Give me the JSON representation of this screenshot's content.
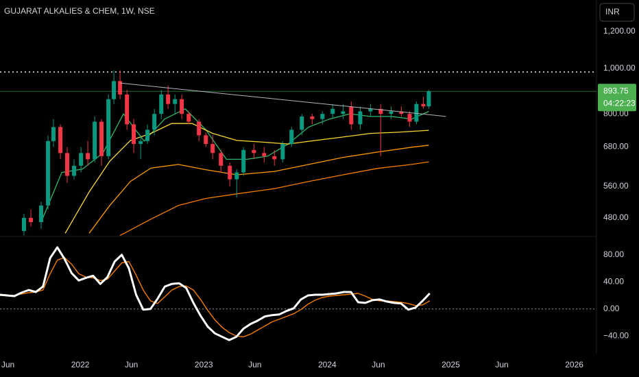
{
  "chart_data": [
    {
      "type": "candlestick",
      "title": "GUJARAT ALKALIES & CHEM, 1W, NSE",
      "currency": "INR",
      "x": [
        2021.544,
        2021.6,
        2021.683,
        2021.739,
        2021.783,
        2021.839,
        2021.894,
        2021.95,
        2022.006,
        2022.061,
        2022.117,
        2022.172,
        2022.228,
        2022.272,
        2022.322,
        2022.378,
        2022.433,
        2022.489,
        2022.544,
        2022.6,
        2022.656,
        2022.711,
        2022.767,
        2022.822,
        2022.878,
        2022.961,
        2023.017,
        2023.072,
        2023.139,
        2023.211,
        2023.267,
        2023.322,
        2023.406,
        2023.489,
        2023.572,
        2023.639,
        2023.711,
        2023.794,
        2023.878,
        2023.961,
        2024.044,
        2024.128,
        2024.194,
        2024.267,
        2024.35,
        2024.433,
        2024.517,
        2024.6,
        2024.667,
        2024.722,
        2024.778,
        2024.822
      ],
      "open": [
        450,
        480,
        470,
        510,
        700,
        750,
        660,
        590,
        620,
        660,
        640,
        770,
        650,
        860,
        940,
        880,
        760,
        690,
        700,
        740,
        800,
        880,
        840,
        860,
        800,
        770,
        720,
        690,
        660,
        620,
        580,
        600,
        670,
        660,
        650,
        640,
        690,
        740,
        790,
        780,
        800,
        800,
        830,
        760,
        810,
        820,
        800,
        810,
        800,
        770,
        840,
        830
      ],
      "high": [
        490,
        500,
        520,
        720,
        780,
        760,
        680,
        640,
        680,
        700,
        790,
        780,
        880,
        990,
        990,
        900,
        780,
        720,
        760,
        820,
        900,
        920,
        880,
        880,
        810,
        780,
        730,
        720,
        670,
        630,
        610,
        680,
        690,
        680,
        670,
        700,
        750,
        800,
        800,
        810,
        840,
        840,
        850,
        830,
        840,
        840,
        830,
        830,
        810,
        850,
        870,
        900
      ],
      "low": [
        440,
        460,
        455,
        500,
        680,
        640,
        570,
        580,
        600,
        620,
        630,
        620,
        640,
        840,
        860,
        740,
        660,
        640,
        690,
        720,
        780,
        820,
        800,
        780,
        760,
        700,
        680,
        640,
        600,
        560,
        530,
        590,
        640,
        630,
        620,
        630,
        680,
        720,
        760,
        760,
        780,
        780,
        740,
        740,
        790,
        650,
        780,
        790,
        750,
        760,
        820,
        820
      ],
      "close": [
        480,
        470,
        510,
        700,
        750,
        660,
        590,
        620,
        660,
        640,
        770,
        650,
        860,
        940,
        880,
        760,
        690,
        700,
        740,
        800,
        880,
        840,
        860,
        800,
        770,
        720,
        690,
        660,
        620,
        580,
        600,
        670,
        660,
        650,
        640,
        690,
        740,
        790,
        780,
        800,
        820,
        810,
        760,
        810,
        820,
        800,
        810,
        800,
        770,
        840,
        830,
        893.75
      ],
      "up_color": "#089981",
      "down_color": "#f23645",
      "series": [
        {
          "color": "#2fb86a",
          "x": [
            2021.683,
            2021.85,
            2022.017,
            2022.183,
            2022.35,
            2022.517,
            2022.683,
            2022.85,
            2023.017,
            2023.183,
            2023.35,
            2023.517,
            2023.683,
            2023.85,
            2024.017,
            2024.183,
            2024.35,
            2024.517,
            2024.683,
            2024.822
          ],
          "values": [
            470,
            600,
            610,
            660,
            800,
            700,
            780,
            820,
            740,
            640,
            640,
            650,
            690,
            750,
            780,
            800,
            790,
            790,
            780,
            810
          ]
        },
        {
          "color": "#fdd835",
          "x": [
            2021.878,
            2022.072,
            2022.239,
            2022.406,
            2022.572,
            2022.739,
            2022.906,
            2023.072,
            2023.267,
            2023.461,
            2023.683,
            2023.906,
            2024.128,
            2024.35,
            2024.572,
            2024.822
          ],
          "values": [
            445,
            545,
            634,
            702,
            727,
            763,
            763,
            727,
            702,
            697,
            690,
            702,
            714,
            727,
            731,
            738
          ]
        },
        {
          "color": "#ff9800",
          "x": [
            2022.072,
            2022.239,
            2022.406,
            2022.572,
            2022.794,
            2023.017,
            2023.267,
            2023.572,
            2023.85,
            2024.128,
            2024.406,
            2024.683,
            2024.822
          ],
          "values": [
            445,
            510,
            574,
            613,
            624,
            608,
            593,
            603,
            624,
            646,
            663,
            679,
            686
          ]
        },
        {
          "color": "#f57c00",
          "x": [
            2022.322,
            2022.572,
            2022.794,
            2023.017,
            2023.267,
            2023.572,
            2023.85,
            2024.128,
            2024.406,
            2024.683,
            2024.822
          ],
          "values": [
            440,
            477,
            510,
            528,
            540,
            554,
            574,
            593,
            612,
            624,
            632
          ]
        }
      ],
      "trendline": {
        "x": [
          2022.322,
          2024.961
        ],
        "values": [
          931,
          790
        ],
        "color": "#b2b5be"
      },
      "level": 983,
      "last_price": 893.75,
      "countdown": "04:22:23",
      "last_color": "#4caf50",
      "log_scale": true,
      "xlim": [
        2021.35,
        2026.18
      ],
      "ylim": [
        438,
        1400
      ],
      "yticks": [
        {
          "value": 1200,
          "label": "1,200.00"
        },
        {
          "value": 1000,
          "label": "1,000.00"
        },
        {
          "value": 800,
          "label": "800.00"
        },
        {
          "value": 680,
          "label": "680.00"
        },
        {
          "value": 560,
          "label": "560.00"
        },
        {
          "value": 480,
          "label": "480.00"
        }
      ]
    },
    {
      "type": "line",
      "x": [
        2021.35,
        2021.408,
        2021.466,
        2021.524,
        2021.582,
        2021.64,
        2021.698,
        2021.756,
        2021.814,
        2021.872,
        2021.93,
        2021.988,
        2022.046,
        2022.104,
        2022.162,
        2022.22,
        2022.278,
        2022.336,
        2022.394,
        2022.452,
        2022.51,
        2022.568,
        2022.626,
        2022.684,
        2022.742,
        2022.8,
        2022.858,
        2022.916,
        2022.974,
        2023.032,
        2023.09,
        2023.148,
        2023.206,
        2023.264,
        2023.322,
        2023.38,
        2023.438,
        2023.496,
        2023.554,
        2023.612,
        2023.67,
        2023.728,
        2023.786,
        2023.844,
        2023.902,
        2023.96,
        2024.018,
        2024.076,
        2024.134,
        2024.192,
        2024.25,
        2024.308,
        2024.366,
        2024.424,
        2024.482,
        2024.54,
        2024.598,
        2024.656,
        2024.714,
        2024.772,
        2024.83
      ],
      "series": [
        {
          "color": "#ffffff",
          "values": [
            21,
            20,
            19,
            24,
            28,
            25,
            33,
            75,
            91,
            74,
            53,
            42,
            46,
            49,
            37,
            47,
            70,
            80,
            60,
            21,
            -1,
            0,
            15,
            33,
            37,
            38,
            31,
            9,
            -10,
            -26,
            -36,
            -41,
            -46,
            -41,
            -29,
            -22,
            -17,
            -11,
            -9,
            -8,
            -3,
            1,
            14,
            20,
            21,
            21,
            22,
            23,
            25,
            25,
            10,
            9,
            13,
            14,
            11,
            9,
            8,
            -1,
            2,
            12,
            23
          ]
        },
        {
          "color": "#f57c00",
          "values": [
            20,
            20,
            20,
            22,
            24,
            25,
            28,
            52,
            72,
            76,
            66,
            52,
            47,
            46,
            42,
            44,
            56,
            68,
            70,
            50,
            28,
            12,
            8,
            18,
            28,
            33,
            34,
            28,
            14,
            -2,
            -16,
            -27,
            -35,
            -40,
            -41,
            -37,
            -31,
            -25,
            -19,
            -15,
            -11,
            -7,
            -1,
            7,
            13,
            17,
            19,
            20,
            21,
            22,
            23,
            19,
            14,
            12,
            12,
            11,
            10,
            8,
            5,
            6,
            12
          ]
        }
      ],
      "zero_line": 0,
      "xlim": [
        2021.35,
        2026.18
      ],
      "ylim": [
        -65,
        107
      ],
      "yticks": [
        {
          "value": 80,
          "label": "80.00"
        },
        {
          "value": 40,
          "label": "40.00"
        },
        {
          "value": 0,
          "label": "0.00"
        },
        {
          "value": -40,
          "label": "−40.00"
        }
      ],
      "xticks": [
        {
          "value": 2021.414,
          "label": "Jun"
        },
        {
          "value": 2022,
          "label": "2022"
        },
        {
          "value": 2022.414,
          "label": "Jun"
        },
        {
          "value": 2023,
          "label": "2023"
        },
        {
          "value": 2023.414,
          "label": "Jun"
        },
        {
          "value": 2024,
          "label": "2024"
        },
        {
          "value": 2024.414,
          "label": "Jun"
        },
        {
          "value": 2025,
          "label": "2025"
        },
        {
          "value": 2025.414,
          "label": "Jun"
        },
        {
          "value": 2026,
          "label": "2026"
        }
      ]
    }
  ]
}
